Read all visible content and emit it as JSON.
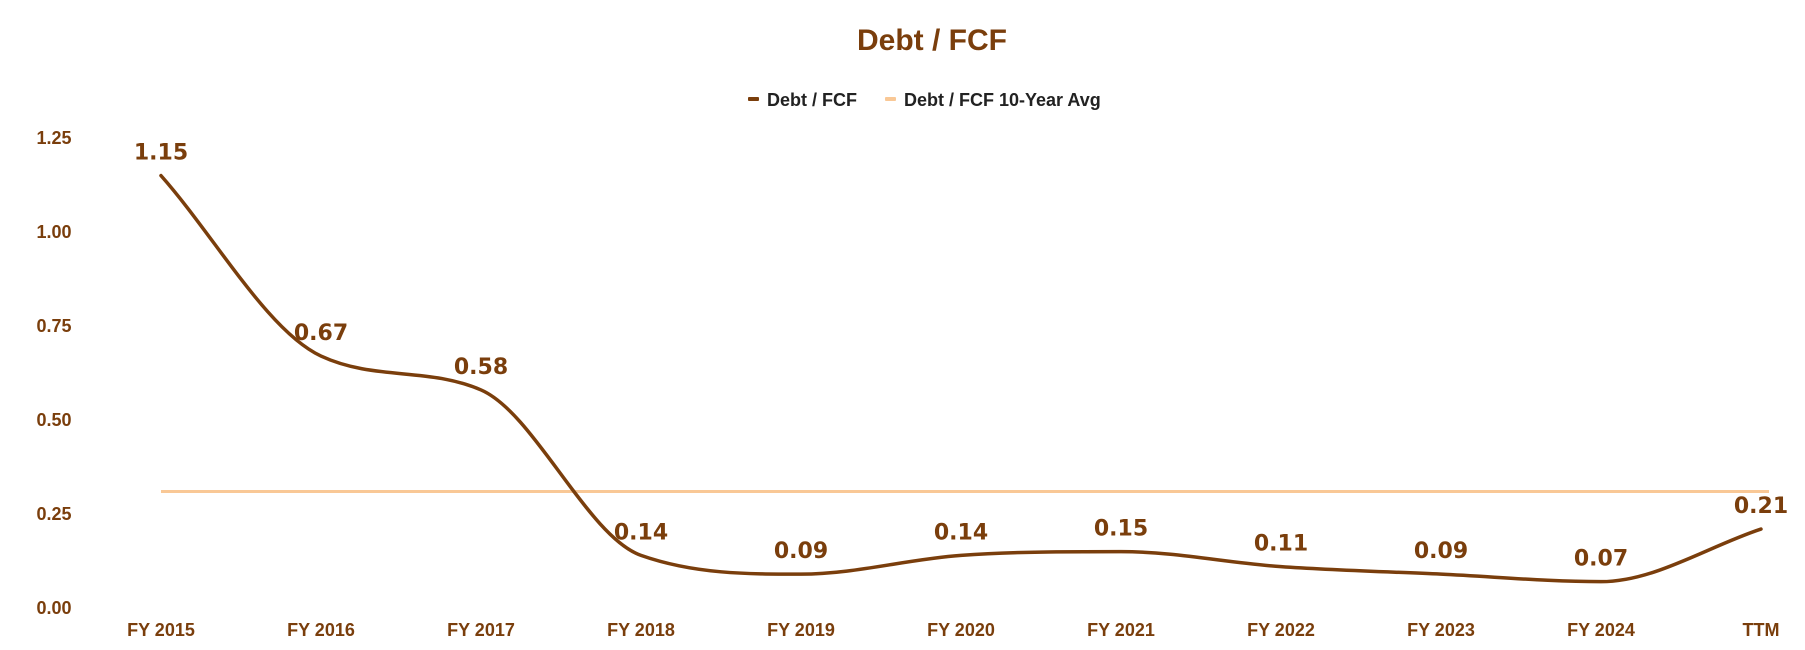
{
  "chart_data": {
    "type": "line",
    "title": "Debt / FCF",
    "categories": [
      "FY 2015",
      "FY 2016",
      "FY 2017",
      "FY 2018",
      "FY 2019",
      "FY 2020",
      "FY 2021",
      "FY 2022",
      "FY 2023",
      "FY 2024",
      "TTM"
    ],
    "series": [
      {
        "name": "Debt / FCF",
        "values": [
          1.15,
          0.67,
          0.58,
          0.14,
          0.09,
          0.14,
          0.15,
          0.11,
          0.09,
          0.07,
          0.21
        ],
        "labels": [
          "1.15",
          "0.67",
          "0.58",
          "0.14",
          "0.09",
          "0.14",
          "0.15",
          "0.11",
          "0.09",
          "0.07",
          "0.21"
        ],
        "color": "#7a3e0c",
        "smooth": true
      },
      {
        "name": "Debt / FCF 10-Year Avg",
        "value": 0.31,
        "color": "#f9c896"
      }
    ],
    "y_ticks": [
      "0.00",
      "0.25",
      "0.50",
      "0.75",
      "1.00",
      "1.25"
    ],
    "ylim": [
      0,
      1.25
    ],
    "grid": false,
    "legend_position": "top-center",
    "xlabel": "",
    "ylabel": "",
    "colors": {
      "title": "#7a3e0c",
      "ticks": "#7a3e0c",
      "data_labels": "#7a3e0c"
    }
  }
}
